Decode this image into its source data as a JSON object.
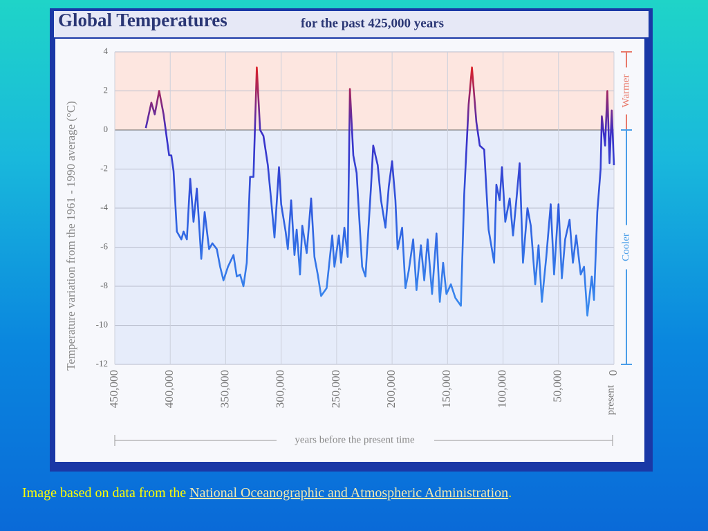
{
  "chart_data": {
    "type": "line",
    "title": "Global Temperatures",
    "subtitle": "for the past 425,000 years",
    "xlabel": "years before the present time",
    "ylabel": "Temperature variation from the 1961 - 1990 average (°C)",
    "x_present_label": "present",
    "warm_label": "Warmer",
    "cool_label": "Cooler",
    "xlim": [
      450000,
      0
    ],
    "ylim": [
      -12,
      4
    ],
    "xticks": [
      {
        "value": 450000,
        "label": "450,000"
      },
      {
        "value": 400000,
        "label": "400,000"
      },
      {
        "value": 350000,
        "label": "350,000"
      },
      {
        "value": 300000,
        "label": "300,000"
      },
      {
        "value": 250000,
        "label": "250,000"
      },
      {
        "value": 200000,
        "label": "200,000"
      },
      {
        "value": 150000,
        "label": "150,000"
      },
      {
        "value": 100000,
        "label": "100,000"
      },
      {
        "value": 50000,
        "label": "50,000"
      },
      0
    ],
    "yticks": [
      4,
      2,
      0,
      -2,
      -4,
      -6,
      -8,
      -10,
      -12
    ],
    "grid": true,
    "series": [
      {
        "name": "Temperature",
        "color": "#e02020",
        "x": [
          422000,
          417000,
          414000,
          410000,
          406000,
          401000,
          399000,
          397000,
          394000,
          390000,
          388000,
          385000,
          382000,
          379000,
          376000,
          372000,
          369000,
          365000,
          362000,
          358000,
          355000,
          352000,
          348000,
          343000,
          340000,
          337000,
          334000,
          331000,
          328000,
          325000,
          322000,
          319000,
          316000,
          312000,
          309000,
          306000,
          302000,
          300000,
          296000,
          294000,
          291000,
          288000,
          286000,
          283000,
          281000,
          277000,
          273000,
          270000,
          267000,
          264000,
          259000,
          254000,
          252000,
          248000,
          246000,
          243000,
          240000,
          238000,
          235000,
          232000,
          229000,
          227000,
          224000,
          219000,
          217000,
          213000,
          210000,
          206000,
          203000,
          200000,
          197000,
          195000,
          191000,
          188000,
          185000,
          181000,
          178000,
          174000,
          171000,
          168000,
          164000,
          160000,
          157000,
          154000,
          151000,
          147000,
          143000,
          138000,
          135000,
          131000,
          128000,
          124000,
          121000,
          117000,
          113000,
          108000,
          106000,
          103000,
          101000,
          98000,
          94000,
          91000,
          88000,
          85000,
          82000,
          78000,
          75000,
          71000,
          68000,
          65000,
          61000,
          57000,
          54000,
          50000,
          47000,
          44000,
          40000,
          37000,
          34000,
          30000,
          27000,
          24000,
          20000,
          18000,
          15000,
          12000,
          11000,
          8000,
          6000,
          4000,
          2000,
          0
        ],
        "values": [
          0.1,
          1.4,
          0.8,
          2.0,
          0.8,
          -1.3,
          -1.3,
          -2.1,
          -5.2,
          -5.6,
          -5.2,
          -5.6,
          -2.5,
          -4.7,
          -3.0,
          -6.6,
          -4.2,
          -6.1,
          -5.8,
          -6.1,
          -7.0,
          -7.7,
          -7.0,
          -6.4,
          -7.5,
          -7.4,
          -8.0,
          -6.8,
          -2.4,
          -2.4,
          3.2,
          0.0,
          -0.3,
          -1.8,
          -3.6,
          -5.5,
          -1.9,
          -3.8,
          -5.2,
          -6.1,
          -3.6,
          -6.4,
          -5.1,
          -7.4,
          -4.9,
          -6.3,
          -3.5,
          -6.5,
          -7.4,
          -8.5,
          -8.1,
          -5.4,
          -7.0,
          -5.4,
          -6.8,
          -5.0,
          -6.5,
          2.1,
          -1.3,
          -2.2,
          -5.1,
          -7.0,
          -7.5,
          -2.9,
          -0.8,
          -1.8,
          -3.6,
          -5.0,
          -2.9,
          -1.6,
          -3.6,
          -6.1,
          -5.0,
          -8.1,
          -7.2,
          -5.6,
          -8.2,
          -5.9,
          -7.7,
          -5.6,
          -8.4,
          -5.3,
          -8.8,
          -6.8,
          -8.4,
          -7.9,
          -8.6,
          -9.0,
          -3.3,
          1.3,
          3.2,
          0.4,
          -0.8,
          -1.0,
          -5.1,
          -6.8,
          -2.8,
          -3.6,
          -1.9,
          -4.7,
          -3.5,
          -5.4,
          -3.6,
          -1.7,
          -6.8,
          -4.0,
          -4.9,
          -7.9,
          -5.9,
          -8.8,
          -6.5,
          -3.8,
          -7.4,
          -3.8,
          -7.6,
          -5.6,
          -4.6,
          -6.8,
          -5.4,
          -7.4,
          -7.0,
          -9.5,
          -7.5,
          -8.7,
          -4.2,
          -2.0,
          0.7,
          -0.8,
          2.0,
          -1.7,
          1.0,
          -1.8
        ]
      }
    ]
  },
  "caption": {
    "text": "Image based on data from the ",
    "link": "National Oceanographic and Atmospheric Administration",
    "end": "."
  }
}
